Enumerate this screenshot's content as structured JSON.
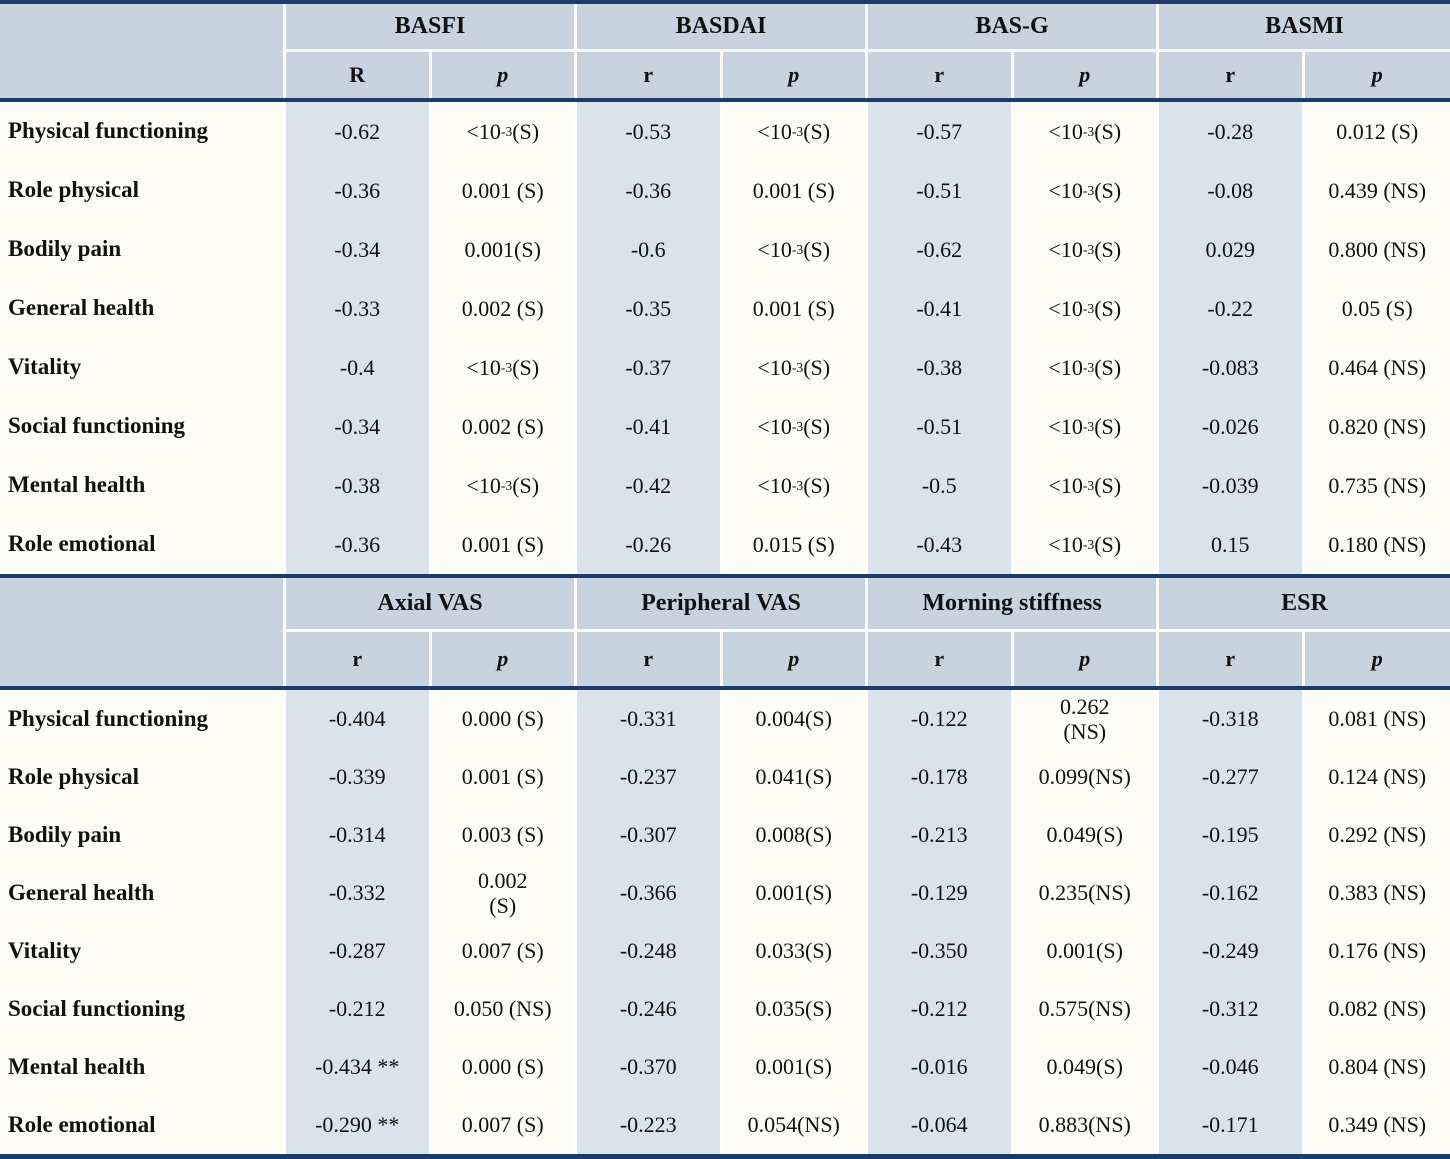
{
  "colors": {
    "header_bg": "#c7d3df",
    "band_bg": "#dce2ec",
    "divider": "#1b3c66",
    "page_bg": "#fdfcf6"
  },
  "sections": [
    {
      "groups": [
        {
          "label": "BASFI",
          "sub": [
            "R",
            "p"
          ]
        },
        {
          "label": "BASDAI",
          "sub": [
            "r",
            "p"
          ]
        },
        {
          "label": "BAS-G",
          "sub": [
            "r",
            "p"
          ]
        },
        {
          "label": "BASMI",
          "sub": [
            "r",
            "p"
          ]
        }
      ],
      "rows": [
        {
          "label": "Physical functioning",
          "values": [
            "-0.62",
            "<10^{-3} (S)",
            "-0.53",
            "<10^{-3} (S)",
            "-0.57",
            "<10^{-3} (S)",
            "-0.28",
            "0.012 (S)"
          ]
        },
        {
          "label": "Role physical",
          "values": [
            "-0.36",
            "0.001 (S)",
            "-0.36",
            "0.001 (S)",
            "-0.51",
            "<10^{-3} (S)",
            "-0.08",
            "0.439 (NS)"
          ]
        },
        {
          "label": "Bodily pain",
          "values": [
            "-0.34",
            "0.001(S)",
            "-0.6",
            "<10^{-3} (S)",
            "-0.62",
            "<10^{-3} (S)",
            "0.029",
            "0.800 (NS)"
          ]
        },
        {
          "label": "General health",
          "values": [
            "-0.33",
            "0.002 (S)",
            "-0.35",
            "0.001 (S)",
            "-0.41",
            "<10^{-3} (S)",
            "-0.22",
            "0.05 (S)"
          ]
        },
        {
          "label": "Vitality",
          "values": [
            "-0.4",
            "<10^{-3} (S)",
            "-0.37",
            "<10^{-3} (S)",
            "-0.38",
            "<10^{-3} (S)",
            "-0.083",
            "0.464 (NS)"
          ]
        },
        {
          "label": "Social functioning",
          "values": [
            "-0.34",
            "0.002 (S)",
            "-0.41",
            "<10^{-3} (S)",
            "-0.51",
            "<10^{-3} (S)",
            "-0.026",
            "0.820 (NS)"
          ]
        },
        {
          "label": "Mental health",
          "values": [
            "-0.38",
            "<10^{-3} (S)",
            "-0.42",
            "<10^{-3} (S)",
            "-0.5",
            "<10^{-3} (S)",
            "-0.039",
            "0.735 (NS)"
          ]
        },
        {
          "label": "Role emotional",
          "values": [
            "-0.36",
            "0.001 (S)",
            "-0.26",
            "0.015 (S)",
            "-0.43",
            "<10^{-3} (S)",
            "0.15",
            "0.180 (NS)"
          ]
        }
      ]
    },
    {
      "groups": [
        {
          "label": "Axial VAS",
          "sub": [
            "r",
            "p"
          ]
        },
        {
          "label": "Peripheral VAS",
          "sub": [
            "r",
            "p"
          ]
        },
        {
          "label": "Morning stiffness",
          "sub": [
            "r",
            "p"
          ]
        },
        {
          "label": "ESR",
          "sub": [
            "r",
            "p"
          ]
        }
      ],
      "rows": [
        {
          "label": "Physical functioning",
          "values": [
            "-0.404",
            "0.000 (S)",
            "-0.331",
            "0.004(S)",
            "-0.122",
            "0.262\n(NS)",
            "-0.318",
            "0.081 (NS)"
          ]
        },
        {
          "label": "Role physical",
          "values": [
            "-0.339",
            "0.001 (S)",
            "-0.237",
            "0.041(S)",
            "-0.178",
            "0.099(NS)",
            "-0.277",
            "0.124 (NS)"
          ]
        },
        {
          "label": "Bodily pain",
          "values": [
            "-0.314",
            "0.003 (S)",
            "-0.307",
            "0.008(S)",
            "-0.213",
            "0.049(S)",
            "-0.195",
            "0.292 (NS)"
          ]
        },
        {
          "label": "General health",
          "values": [
            "-0.332",
            "0.002\n(S)",
            "-0.366",
            "0.001(S)",
            "-0.129",
            "0.235(NS)",
            "-0.162",
            "0.383 (NS)"
          ]
        },
        {
          "label": "Vitality",
          "values": [
            "-0.287",
            "0.007 (S)",
            "-0.248",
            "0.033(S)",
            "-0.350",
            "0.001(S)",
            "-0.249",
            "0.176 (NS)"
          ]
        },
        {
          "label": "Social functioning",
          "values": [
            "-0.212",
            "0.050 (NS)",
            "-0.246",
            "0.035(S)",
            "-0.212",
            "0.575(NS)",
            "-0.312",
            "0.082 (NS)"
          ]
        },
        {
          "label": "Mental health",
          "values": [
            "-0.434 **",
            "0.000 (S)",
            "-0.370",
            "0.001(S)",
            "-0.016",
            "0.049(S)",
            "-0.046",
            "0.804 (NS)"
          ]
        },
        {
          "label": "Role emotional",
          "values": [
            "-0.290 **",
            "0.007 (S)",
            "-0.223",
            "0.054(NS)",
            "-0.064",
            "0.883(NS)",
            "-0.171",
            "0.349 (NS)"
          ]
        }
      ]
    }
  ]
}
